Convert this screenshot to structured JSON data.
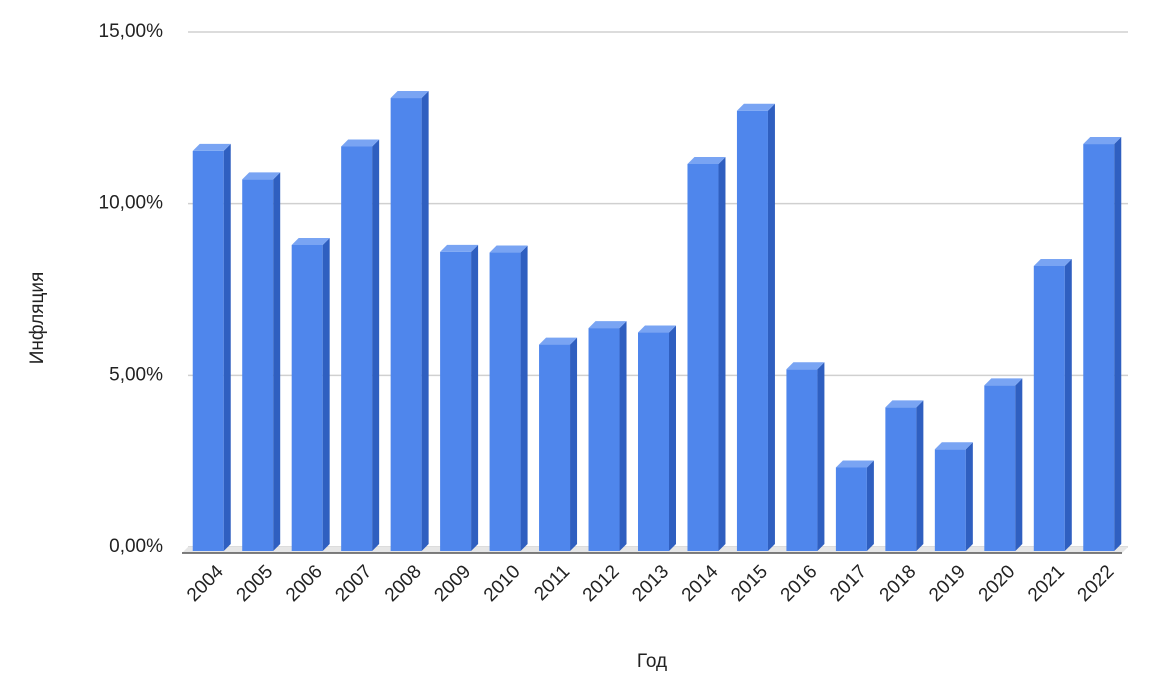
{
  "chart_data": {
    "type": "bar3d",
    "y_label": "Инфляция",
    "x_label": "Год",
    "categories": [
      "2004",
      "2005",
      "2006",
      "2007",
      "2008",
      "2009",
      "2010",
      "2011",
      "2012",
      "2013",
      "2014",
      "2015",
      "2016",
      "2017",
      "2018",
      "2019",
      "2020",
      "2021",
      "2022"
    ],
    "values": [
      11.74,
      10.91,
      9.0,
      11.87,
      13.28,
      8.8,
      8.78,
      6.1,
      6.58,
      6.45,
      11.36,
      12.91,
      5.38,
      2.52,
      4.27,
      3.05,
      4.91,
      8.39,
      11.94
    ],
    "color": "#4f86ec",
    "ylim": [
      0,
      15
    ],
    "yticks": [
      {
        "value": 0,
        "label": "0,00%"
      },
      {
        "value": 5,
        "label": "5,00%"
      },
      {
        "value": 10,
        "label": "10,00%"
      },
      {
        "value": 15,
        "label": "15,00%"
      }
    ],
    "grid": true
  }
}
